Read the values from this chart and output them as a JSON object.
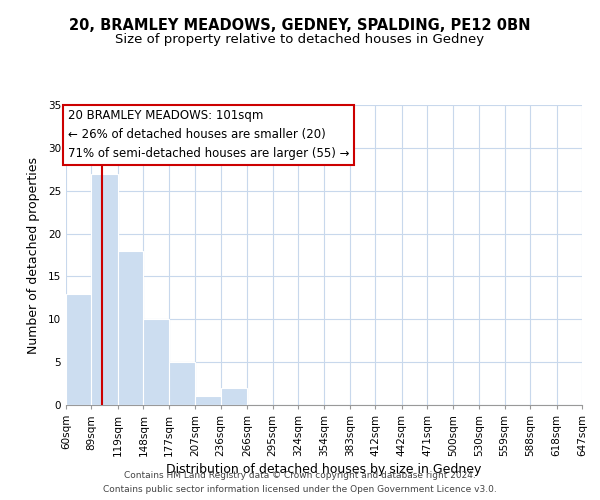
{
  "title": "20, BRAMLEY MEADOWS, GEDNEY, SPALDING, PE12 0BN",
  "subtitle": "Size of property relative to detached houses in Gedney",
  "xlabel": "Distribution of detached houses by size in Gedney",
  "ylabel": "Number of detached properties",
  "bar_values": [
    13,
    27,
    18,
    10,
    5,
    1,
    2,
    0,
    0,
    0,
    0,
    0,
    0,
    0,
    0,
    0,
    0,
    0,
    0,
    0
  ],
  "bin_edges": [
    60,
    89,
    119,
    148,
    177,
    207,
    236,
    266,
    295,
    324,
    354,
    383,
    412,
    442,
    471,
    500,
    530,
    559,
    588,
    618,
    647
  ],
  "bin_labels": [
    "60sqm",
    "89sqm",
    "119sqm",
    "148sqm",
    "177sqm",
    "207sqm",
    "236sqm",
    "266sqm",
    "295sqm",
    "324sqm",
    "354sqm",
    "383sqm",
    "412sqm",
    "442sqm",
    "471sqm",
    "500sqm",
    "530sqm",
    "559sqm",
    "588sqm",
    "618sqm",
    "647sqm"
  ],
  "bar_color": "#ccddf0",
  "grid_color": "#c8d8ec",
  "red_line_x": 101,
  "red_line_color": "#cc0000",
  "annotation_text_line1": "20 BRAMLEY MEADOWS: 101sqm",
  "annotation_text_line2": "← 26% of detached houses are smaller (20)",
  "annotation_text_line3": "71% of semi-detached houses are larger (55) →",
  "ylim": [
    0,
    35
  ],
  "yticks": [
    0,
    5,
    10,
    15,
    20,
    25,
    30,
    35
  ],
  "title_fontsize": 10.5,
  "subtitle_fontsize": 9.5,
  "axis_label_fontsize": 9,
  "tick_fontsize": 7.5,
  "annotation_fontsize": 8.5,
  "footer_fontsize": 6.5,
  "footer_line1": "Contains HM Land Registry data © Crown copyright and database right 2024.",
  "footer_line2": "Contains public sector information licensed under the Open Government Licence v3.0."
}
